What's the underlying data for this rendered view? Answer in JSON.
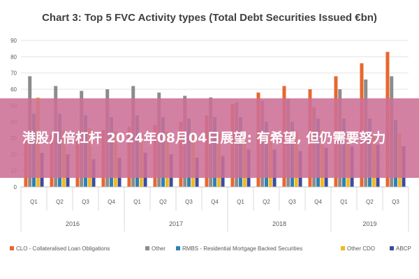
{
  "banner": {
    "text": "港股几倍杠杆 2024年08月04日展望: 有希望, 但仍需要努力"
  },
  "chart_data": {
    "type": "bar",
    "title": "Chart 3: Top 5 FVC Activity types (Total Debt Securities Issued €bn)",
    "categories": [
      "Q1",
      "Q2",
      "Q3",
      "Q4",
      "Q1",
      "Q2",
      "Q3",
      "Q4",
      "Q1",
      "Q2",
      "Q3",
      "Q4",
      "Q1",
      "Q2",
      "Q3"
    ],
    "groups": [
      {
        "label": "2016",
        "start": 0,
        "end": 3
      },
      {
        "label": "2017",
        "start": 4,
        "end": 7
      },
      {
        "label": "2018",
        "start": 8,
        "end": 11
      },
      {
        "label": "2019",
        "start": 12,
        "end": 14
      }
    ],
    "ylim": [
      0,
      90
    ],
    "yticks": [
      0,
      10,
      20,
      30,
      40,
      50,
      60,
      70,
      80,
      90
    ],
    "grid": true,
    "legend_position": "bottom",
    "series": [
      {
        "name": "CLO - Collateralised Loan Obligations",
        "color": "#e8672e",
        "values": [
          30,
          32,
          33,
          35,
          37,
          38,
          40,
          44,
          51,
          58,
          62,
          60,
          68,
          76,
          83
        ]
      },
      {
        "name": "Other",
        "color": "#8c8c8c",
        "values": [
          68,
          62,
          59,
          60,
          62,
          58,
          56,
          55,
          52,
          53,
          54,
          49,
          60,
          66,
          68
        ]
      },
      {
        "name": "RMBS - Residential Mortgage Backed Securities",
        "color": "#2e80b5",
        "values": [
          45,
          45,
          44,
          43,
          44,
          43,
          42,
          43,
          43,
          40,
          40,
          42,
          42,
          42,
          41
        ]
      },
      {
        "name": "Other CDO",
        "color": "#f2b81f",
        "values": [
          55,
          35,
          36,
          34,
          33,
          34,
          33,
          33,
          32,
          33,
          34,
          35,
          33,
          32,
          33
        ]
      },
      {
        "name": "ABCP",
        "color": "#3d4c9a",
        "values": [
          21,
          20,
          17,
          18,
          21,
          20,
          18,
          19,
          23,
          23,
          22,
          24,
          25,
          26,
          25
        ]
      }
    ]
  }
}
